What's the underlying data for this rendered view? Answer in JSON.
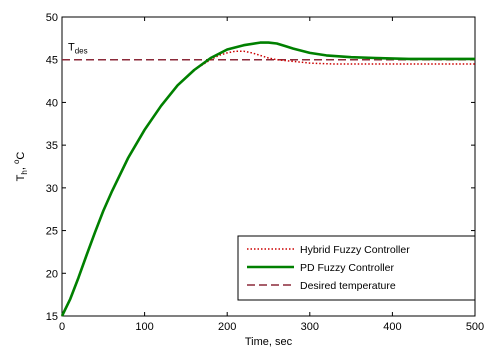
{
  "chart_data": {
    "type": "line",
    "xlabel": "Time, sec",
    "ylabel": {
      "base": "T",
      "sub": "h",
      "tail": ", ",
      "sup": "o",
      "unit": "C"
    },
    "xlim": [
      0,
      500
    ],
    "ylim": [
      15,
      50
    ],
    "xticks": [
      "0",
      "100",
      "200",
      "300",
      "400",
      "500"
    ],
    "yticks": [
      "15",
      "20",
      "25",
      "30",
      "35",
      "40",
      "45",
      "50"
    ],
    "grid": false,
    "legend_position": "bottom-right",
    "annotation": {
      "base": "T",
      "sub": "des"
    },
    "series": [
      {
        "name": "Hybrid Fuzzy Controller",
        "color": "#cc0000",
        "style": "dotted",
        "x": [
          0,
          10,
          20,
          30,
          40,
          50,
          60,
          80,
          100,
          120,
          140,
          160,
          180,
          190,
          200,
          210,
          220,
          230,
          240,
          250,
          260,
          280,
          300,
          330,
          360,
          400,
          450,
          500
        ],
        "y": [
          15,
          17,
          19.5,
          22.2,
          24.8,
          27.3,
          29.5,
          33.5,
          36.8,
          39.6,
          42,
          43.8,
          45,
          45.5,
          45.8,
          46,
          46,
          45.8,
          45.5,
          45.2,
          45,
          44.8,
          44.6,
          44.5,
          44.5,
          44.5,
          44.5,
          44.5
        ]
      },
      {
        "name": "PD Fuzzy Controller",
        "color": "#008000",
        "style": "solid",
        "x": [
          0,
          10,
          20,
          30,
          40,
          50,
          60,
          80,
          100,
          120,
          140,
          160,
          180,
          200,
          220,
          240,
          250,
          260,
          270,
          280,
          300,
          320,
          350,
          380,
          420,
          460,
          500
        ],
        "y": [
          15,
          17,
          19.5,
          22.2,
          24.8,
          27.3,
          29.5,
          33.5,
          36.8,
          39.6,
          42,
          43.8,
          45.2,
          46.2,
          46.7,
          47,
          47,
          46.9,
          46.6,
          46.3,
          45.8,
          45.5,
          45.3,
          45.2,
          45.1,
          45.1,
          45.1
        ]
      },
      {
        "name": "Desired temperature",
        "color": "#8b2a3a",
        "style": "dashed",
        "x": [
          0,
          500
        ],
        "y": [
          45,
          45
        ]
      }
    ]
  }
}
